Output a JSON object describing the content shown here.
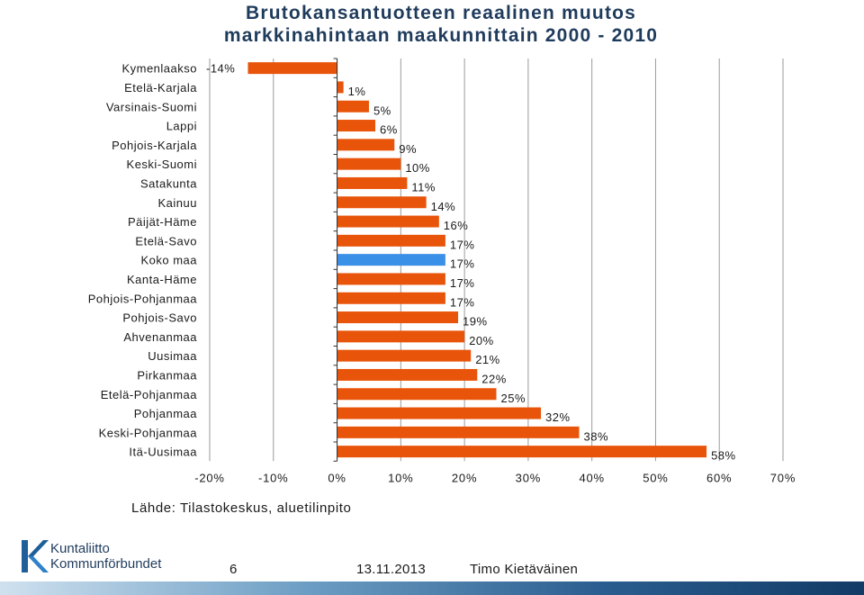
{
  "title_lines": [
    "Brutokansantuotteen reaalinen muutos",
    "markkinahintaan maakunnittain 2000 - 2010"
  ],
  "source": "Lähde: Tilastokeskus, aluetilinpito",
  "footer": {
    "page": "6",
    "date": "13.11.2013",
    "author": "Timo Kietäväinen"
  },
  "logo": {
    "line1": "Kuntaliitto",
    "line2": "Kommunförbundet"
  },
  "chart_data": {
    "type": "bar",
    "orientation": "horizontal",
    "title": "Brutokansantuotteen reaalinen muutos markkinahintaan maakunnittain 2000 - 2010",
    "categories": [
      "Kymenlaakso",
      "Etelä-Karjala",
      "Varsinais-Suomi",
      "Lappi",
      "Pohjois-Karjala",
      "Keski-Suomi",
      "Satakunta",
      "Kainuu",
      "Päijät-Häme",
      "Etelä-Savo",
      "Koko maa",
      "Kanta-Häme",
      "Pohjois-Pohjanmaa",
      "Pohjois-Savo",
      "Ahvenanmaa",
      "Uusimaa",
      "Pirkanmaa",
      "Etelä-Pohjanmaa",
      "Pohjanmaa",
      "Keski-Pohjanmaa",
      "Itä-Uusimaa"
    ],
    "values": [
      -14,
      1,
      5,
      6,
      9,
      10,
      11,
      14,
      16,
      17,
      17,
      17,
      17,
      19,
      20,
      21,
      22,
      25,
      32,
      38,
      58
    ],
    "value_labels": [
      "-14%",
      "1%",
      "5%",
      "6%",
      "9%",
      "10%",
      "11%",
      "14%",
      "16%",
      "17%",
      "17%",
      "17%",
      "17%",
      "19%",
      "20%",
      "21%",
      "22%",
      "25%",
      "32%",
      "38%",
      "58%"
    ],
    "highlight_index": 10,
    "x_ticks": [
      -20,
      -10,
      0,
      10,
      20,
      30,
      40,
      50,
      60,
      70
    ],
    "x_tick_labels": [
      "-20%",
      "-10%",
      "0%",
      "10%",
      "20%",
      "30%",
      "40%",
      "50%",
      "60%",
      "70%"
    ],
    "xlim": [
      -20,
      70
    ],
    "grid": true,
    "colors": {
      "bar": "#e8540a",
      "highlight": "#3a8fe6",
      "grid": "#9a9a9a"
    }
  }
}
